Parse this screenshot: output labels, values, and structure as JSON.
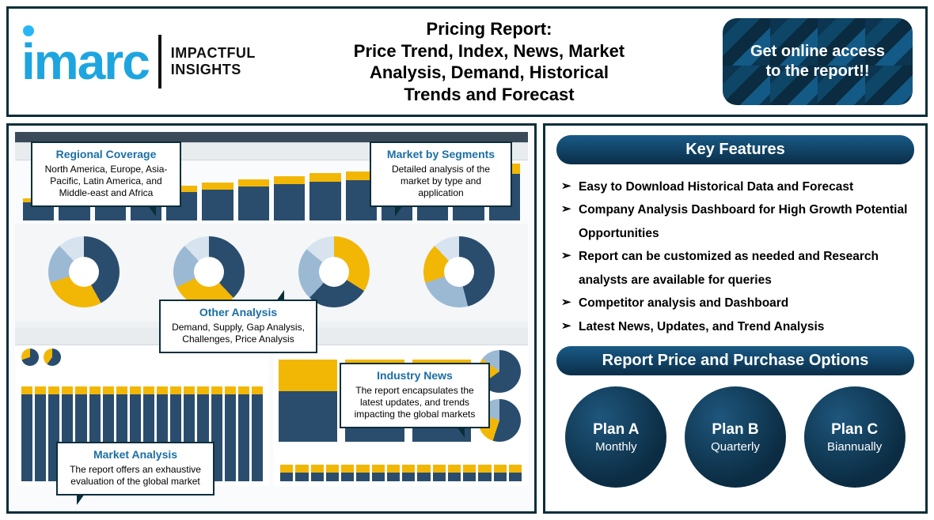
{
  "brand": {
    "name": "imarc",
    "tagline_line1": "IMPACTFUL",
    "tagline_line2": "INSIGHTS",
    "accent_color": "#1ea5e0"
  },
  "title": {
    "line1": "Pricing Report:",
    "line2": "Price Trend, Index, News, Market",
    "line3": "Analysis, Demand, Historical",
    "line4": "Trends and Forecast"
  },
  "cta": {
    "text": "Get online access to the report!!"
  },
  "callouts": {
    "regional": {
      "heading": "Regional Coverage",
      "body": "North America, Europe, Asia-Pacific, Latin America, and Middle-east and Africa"
    },
    "segments": {
      "heading": "Market by Segments",
      "body": "Detailed analysis of the market by type and application"
    },
    "other": {
      "heading": "Other Analysis",
      "body": "Demand, Supply, Gap Analysis, Challenges, Price Analysis"
    },
    "industry": {
      "heading": "Industry News",
      "body": "The report encapsulates the latest updates, and trends impacting the global markets"
    },
    "market": {
      "heading": "Market Analysis",
      "body": "The report offers an exhaustive evaluation of the global market"
    }
  },
  "key_features": {
    "header": "Key Features",
    "items": [
      "Easy to Download Historical Data and Forecast",
      "Company Analysis Dashboard for High Growth Potential Opportunities",
      "Report can be customized as needed and Research analysts are available for queries",
      "Competitor analysis and Dashboard",
      "Latest News, Updates, and Trend Analysis"
    ]
  },
  "pricing": {
    "header": "Report Price and Purchase Options",
    "plans": [
      {
        "name": "Plan A",
        "period": "Monthly"
      },
      {
        "name": "Plan B",
        "period": "Quarterly"
      },
      {
        "name": "Plan C",
        "period": "Biannually"
      }
    ]
  },
  "dashboard_style": {
    "bar_chart_top": {
      "type": "bar",
      "values": [
        28,
        32,
        36,
        40,
        44,
        48,
        52,
        56,
        60,
        62,
        64,
        68,
        70,
        72
      ],
      "cap_ratio": 0.18,
      "bar_color": "#2a4d6e",
      "cap_color": "#f2b705",
      "background": "#ffffff"
    },
    "donuts": [
      {
        "slices": [
          0.42,
          0.28,
          0.18,
          0.12
        ],
        "colors": [
          "#2a4d6e",
          "#f2b705",
          "#9cb9d4",
          "#d7e3ee"
        ]
      },
      {
        "slices": [
          0.38,
          0.3,
          0.2,
          0.12
        ],
        "colors": [
          "#2a4d6e",
          "#f2b705",
          "#9cb9d4",
          "#d7e3ee"
        ]
      },
      {
        "slices": [
          0.34,
          0.28,
          0.24,
          0.14
        ],
        "colors": [
          "#f2b705",
          "#2a4d6e",
          "#9cb9d4",
          "#d7e3ee"
        ]
      },
      {
        "slices": [
          0.46,
          0.24,
          0.18,
          0.12
        ],
        "colors": [
          "#2a4d6e",
          "#9cb9d4",
          "#f2b705",
          "#d7e3ee"
        ]
      }
    ],
    "stacked_bars_bottom_left": {
      "type": "bar",
      "count": 18,
      "height_ratio": 0.88,
      "top_ratio": 0.08,
      "bar_color": "#2a4d6e",
      "top_color": "#f2b705"
    },
    "big_stack": {
      "columns": [
        {
          "yellow": 0.35,
          "navy": 0.55
        },
        {
          "yellow": 0.55,
          "navy": 0.35
        },
        {
          "yellow": 0.25,
          "navy": 0.65
        }
      ],
      "yellow_color": "#f2b705",
      "navy_color": "#2a4d6e"
    },
    "stacked_bars_bottom_right": {
      "type": "bar",
      "count": 16,
      "height_ratio": 0.55,
      "top_ratio": 0.45,
      "bar_color": "#2a4d6e",
      "top_color": "#f2b705"
    },
    "colors": {
      "frame_border": "#0a2e3a",
      "panel_bg": "#f4f6f8",
      "header_gradient_from": "#195a86",
      "header_gradient_to": "#0a2e48",
      "plan_bg_from": "#1e567c",
      "plan_bg_to": "#0b2c42",
      "text": "#111111"
    }
  }
}
